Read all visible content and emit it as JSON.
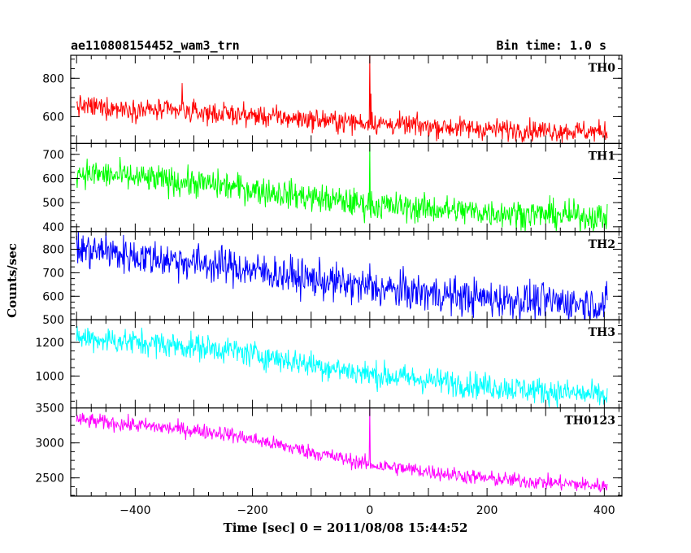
{
  "header": {
    "object_name": "ae110808154452_wam3_trn",
    "bin_time": "Bin time: 1.0 s"
  },
  "chart_data": {
    "type": "line",
    "xlabel": "Time [sec] 0 = 2011/08/08 15:44:52",
    "ylabel": "Counts/sec",
    "xlim": [
      -510,
      430
    ],
    "xticks": [
      -400,
      -200,
      0,
      200,
      400
    ],
    "x_step": 1.0,
    "panels": [
      {
        "name": "TH0",
        "color": "#ff0000",
        "ylim": [
          460,
          920
        ],
        "yticks": [
          600,
          800
        ],
        "trend": [
          [
            -500,
            655
          ],
          [
            -250,
            615
          ],
          [
            0,
            565
          ],
          [
            200,
            535
          ],
          [
            405,
            520
          ]
        ],
        "noise": 28,
        "spikes": [
          {
            "x": -320,
            "y": 775
          },
          {
            "x": 0,
            "y": 920
          },
          {
            "x": 2,
            "y": 720
          }
        ]
      },
      {
        "name": "TH1",
        "color": "#00ff00",
        "ylim": [
          380,
          745
        ],
        "yticks": [
          400,
          500,
          600,
          700
        ],
        "trend": [
          [
            -500,
            625
          ],
          [
            -250,
            570
          ],
          [
            0,
            490
          ],
          [
            200,
            460
          ],
          [
            405,
            440
          ]
        ],
        "noise": 30,
        "spikes": [
          {
            "x": 0,
            "y": 745
          }
        ]
      },
      {
        "name": "TH2",
        "color": "#0000ff",
        "ylim": [
          500,
          875
        ],
        "yticks": [
          500,
          600,
          700,
          800
        ],
        "trend": [
          [
            -500,
            800
          ],
          [
            -250,
            730
          ],
          [
            0,
            635
          ],
          [
            200,
            590
          ],
          [
            405,
            565
          ]
        ],
        "noise": 40,
        "spikes": [
          {
            "x": -450,
            "y": 875
          },
          {
            "x": 0,
            "y": 740
          }
        ]
      },
      {
        "name": "TH3",
        "color": "#00ffff",
        "ylim": [
          810,
          1335
        ],
        "yticks": [
          1000,
          1200
        ],
        "trend": [
          [
            -500,
            1230
          ],
          [
            -250,
            1160
          ],
          [
            0,
            1010
          ],
          [
            200,
            940
          ],
          [
            405,
            880
          ]
        ],
        "noise": 40,
        "spikes": []
      },
      {
        "name": "TH0123",
        "color": "#ff00ff",
        "ylim": [
          2240,
          3500
        ],
        "yticks": [
          2500,
          3000,
          3500
        ],
        "trend": [
          [
            -500,
            3330
          ],
          [
            -250,
            3140
          ],
          [
            0,
            2690
          ],
          [
            200,
            2490
          ],
          [
            405,
            2380
          ]
        ],
        "noise": 55,
        "spikes": [
          {
            "x": 0,
            "y": 3500
          }
        ]
      }
    ]
  }
}
